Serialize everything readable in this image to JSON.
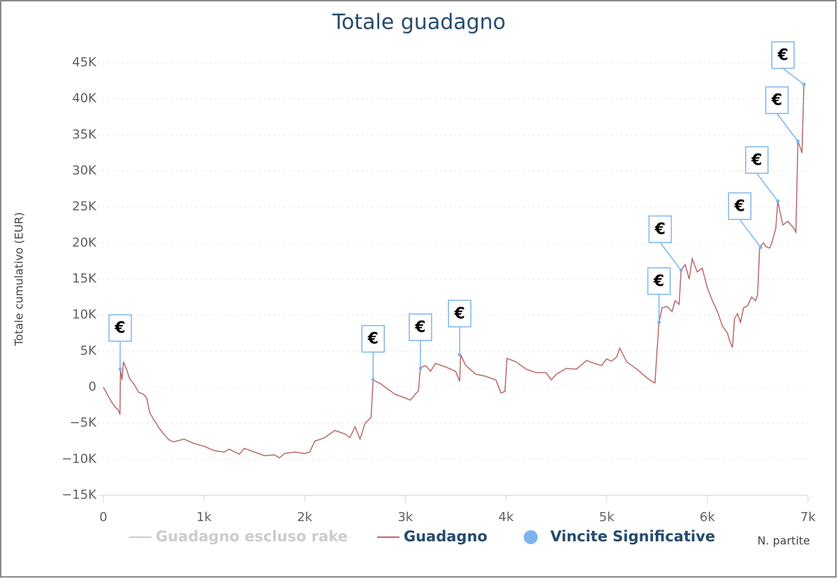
{
  "chart_data": {
    "type": "line",
    "title": "Totale guadagno",
    "y_label": "Totale cumulativo (EUR)",
    "x_label": "N. partite",
    "marker_label": "€",
    "xlim": [
      0,
      7000
    ],
    "xticks": [
      0,
      {
        "value": 1000,
        "label": "1k"
      },
      {
        "value": 2000,
        "label": "2k"
      },
      {
        "value": 3000,
        "label": "3k"
      },
      {
        "value": 4000,
        "label": "4k"
      },
      {
        "value": 5000,
        "label": "5k"
      },
      {
        "value": 6000,
        "label": "6k"
      },
      {
        "value": 7000,
        "label": "7k"
      }
    ],
    "ylim": [
      -15000,
      45000
    ],
    "yticks": [
      {
        "value": -15000,
        "label": "−15K"
      },
      {
        "value": -10000,
        "label": "−10K"
      },
      {
        "value": -5000,
        "label": "−5K"
      },
      0,
      {
        "value": 5000,
        "label": "5K"
      },
      {
        "value": 10000,
        "label": "10K"
      },
      {
        "value": 15000,
        "label": "15K"
      },
      {
        "value": 20000,
        "label": "20K"
      },
      {
        "value": 25000,
        "label": "25K"
      },
      {
        "value": 30000,
        "label": "30K"
      },
      {
        "value": 35000,
        "label": "35K"
      },
      {
        "value": 40000,
        "label": "40K"
      },
      {
        "value": 45000,
        "label": "45K"
      }
    ],
    "grid": true,
    "series": [
      {
        "name": "Guadagno escluso rake",
        "color": "#cccccc",
        "visible": false
      },
      {
        "name": "Guadagno",
        "color": "#b86868",
        "type": "line",
        "x": [
          0,
          20,
          80,
          120,
          150,
          165,
          170,
          185,
          200,
          230,
          260,
          300,
          350,
          400,
          430,
          460,
          500,
          560,
          600,
          650,
          700,
          800,
          900,
          1000,
          1100,
          1200,
          1250,
          1350,
          1400,
          1500,
          1600,
          1700,
          1750,
          1800,
          1900,
          2000,
          2050,
          2100,
          2200,
          2300,
          2400,
          2450,
          2500,
          2550,
          2600,
          2660,
          2680,
          2750,
          2850,
          2900,
          3000,
          3050,
          3100,
          3130,
          3150,
          3200,
          3250,
          3300,
          3400,
          3500,
          3540,
          3550,
          3600,
          3700,
          3800,
          3900,
          3950,
          3990,
          4010,
          4100,
          4200,
          4300,
          4400,
          4450,
          4500,
          4600,
          4700,
          4800,
          4900,
          4950,
          5000,
          5050,
          5100,
          5130,
          5200,
          5300,
          5400,
          5450,
          5480,
          5500,
          5520,
          5550,
          5600,
          5650,
          5680,
          5720,
          5740,
          5780,
          5820,
          5850,
          5900,
          5950,
          6000,
          6050,
          6100,
          6150,
          6200,
          6220,
          6250,
          6270,
          6300,
          6330,
          6360,
          6400,
          6440,
          6480,
          6500,
          6520,
          6560,
          6580,
          6620,
          6640,
          6680,
          6700,
          6750,
          6800,
          6850,
          6880,
          6900,
          6940,
          6960
        ],
        "values": [
          0,
          -500,
          -2000,
          -2800,
          -3200,
          -3800,
          2500,
          1000,
          3500,
          2500,
          1200,
          500,
          -700,
          -1000,
          -1500,
          -3500,
          -4500,
          -5800,
          -6500,
          -7300,
          -7600,
          -7200,
          -7800,
          -8200,
          -8800,
          -9000,
          -8600,
          -9300,
          -8500,
          -9000,
          -9500,
          -9400,
          -9800,
          -9200,
          -9000,
          -9200,
          -9000,
          -7500,
          -7000,
          -6000,
          -6500,
          -7000,
          -5500,
          -7200,
          -5000,
          -4200,
          1000,
          500,
          -500,
          -1000,
          -1500,
          -1800,
          -1000,
          -500,
          2700,
          3000,
          2200,
          3300,
          2800,
          2200,
          800,
          4500,
          3000,
          1800,
          1500,
          1000,
          -800,
          -600,
          4000,
          3500,
          2500,
          2000,
          2000,
          1000,
          1800,
          2600,
          2500,
          3700,
          3200,
          3000,
          3900,
          3600,
          4200,
          5400,
          3500,
          2500,
          1300,
          800,
          600,
          5000,
          9000,
          11000,
          11200,
          10500,
          12000,
          11500,
          16300,
          17000,
          15000,
          17800,
          16000,
          16500,
          13800,
          12000,
          10500,
          8500,
          7500,
          6500,
          5500,
          9500,
          10200,
          9000,
          11000,
          11300,
          12500,
          12000,
          12800,
          19500,
          20000,
          19500,
          19300,
          20000,
          22000,
          25800,
          22500,
          23000,
          22200,
          21500,
          34200,
          32500,
          42000
        ]
      },
      {
        "name": "Vincite Significative",
        "color": "#7cb5ec",
        "type": "scatter",
        "x": [
          167,
          2680,
          3150,
          3540,
          5520,
          5740,
          6530,
          6700,
          6900,
          6960
        ],
        "values": [
          2500,
          1000,
          2600,
          4500,
          9000,
          16200,
          19400,
          25800,
          34100,
          42000
        ]
      }
    ]
  }
}
